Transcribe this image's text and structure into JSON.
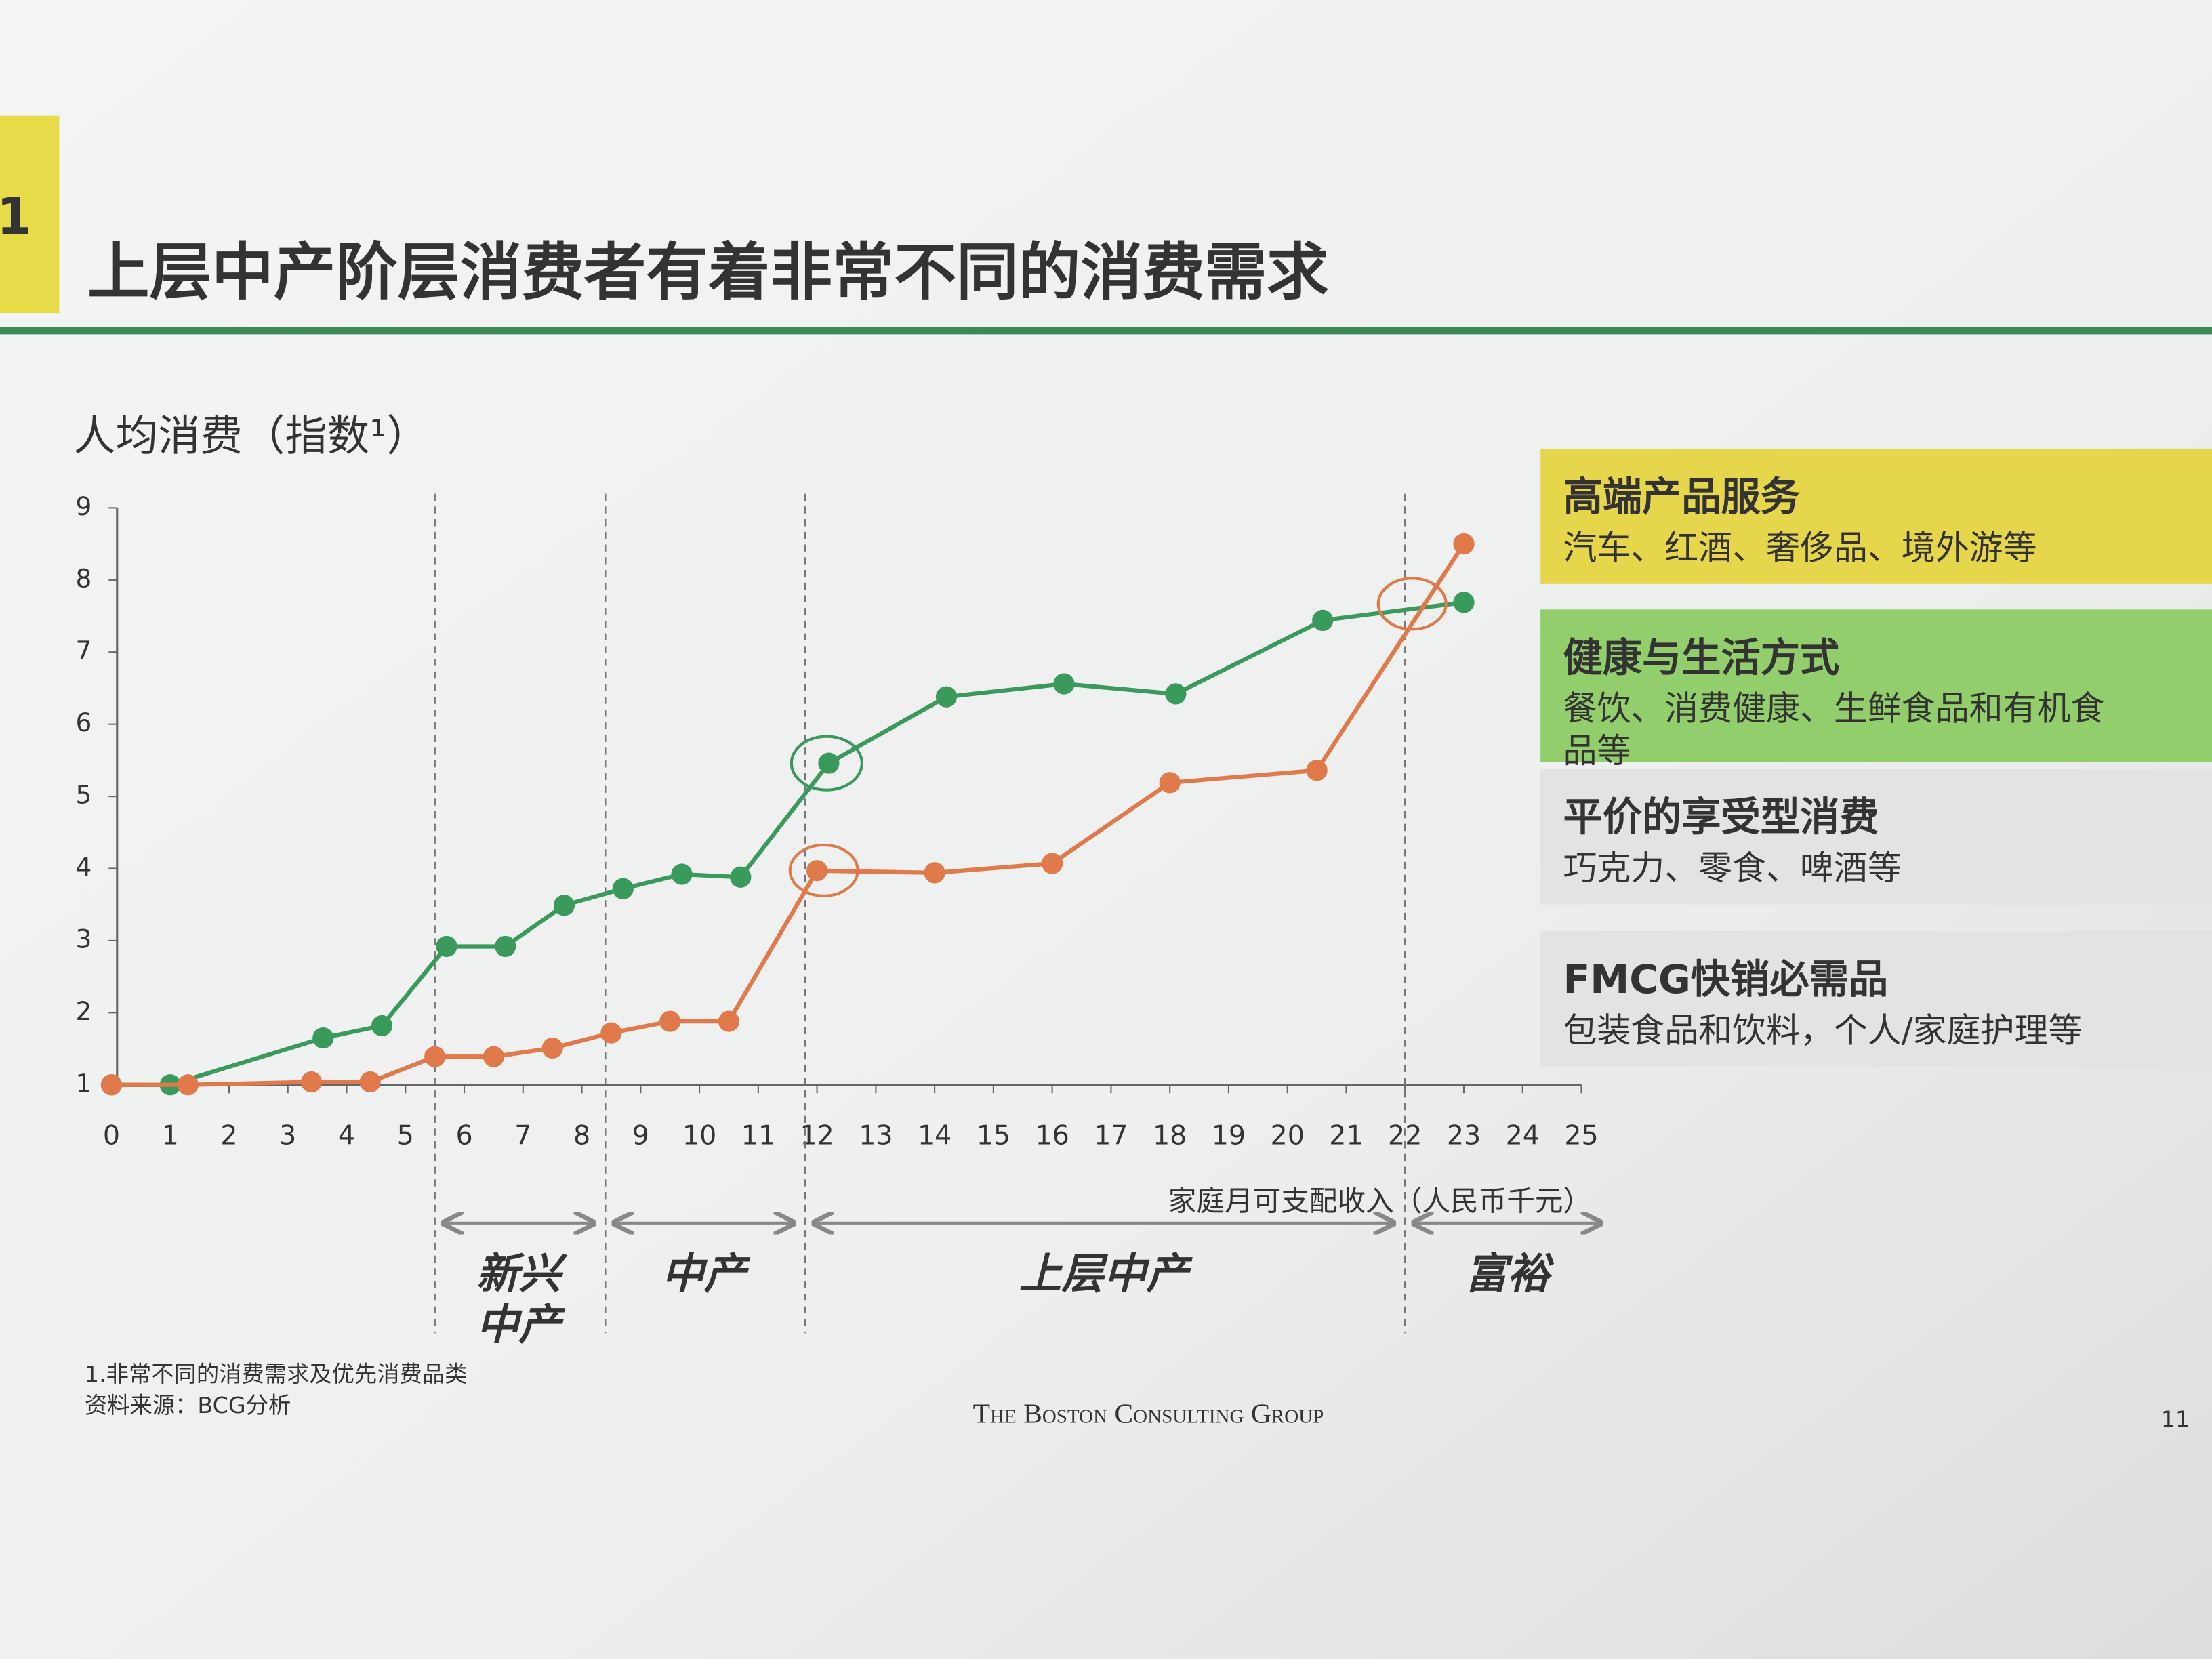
{
  "header": {
    "section": "1",
    "title": "上层中产阶层消费者有着非常不同的消费需求"
  },
  "chart_data": {
    "type": "line",
    "y_label": "人均消费（指数¹）",
    "x_label": "家庭月可支配收入（人民币千元）",
    "xlim": [
      0,
      25
    ],
    "ylim": [
      1,
      9
    ],
    "xticks": [
      0,
      1,
      2,
      3,
      4,
      5,
      6,
      7,
      8,
      9,
      10,
      11,
      12,
      13,
      14,
      15,
      16,
      17,
      18,
      19,
      20,
      21,
      22,
      23,
      24,
      25
    ],
    "yticks": [
      1,
      2,
      3,
      4,
      5,
      6,
      7,
      8,
      9
    ],
    "series": [
      {
        "color": "#3a9a5c",
        "x": [
          0,
          1,
          3.6,
          4.6,
          5.7,
          6.7,
          7.7,
          8.7,
          9.7,
          10.7,
          12.2,
          14.2,
          16.2,
          18.1,
          20.6,
          23.0
        ],
        "values": [
          1,
          1,
          1.65,
          1.82,
          2.92,
          2.92,
          3.49,
          3.72,
          3.92,
          3.88,
          5.46,
          6.38,
          6.56,
          6.42,
          7.44,
          7.69
        ]
      },
      {
        "color": "#e07a4a",
        "x": [
          0,
          1.3,
          3.4,
          4.4,
          5.5,
          6.5,
          7.5,
          8.5,
          9.5,
          10.5,
          12.0,
          14.0,
          16.0,
          18.0,
          20.5,
          23.0
        ],
        "values": [
          1,
          1,
          1.04,
          1.04,
          1.39,
          1.39,
          1.51,
          1.72,
          1.88,
          1.88,
          3.97,
          3.94,
          4.07,
          5.19,
          5.36,
          8.5
        ]
      }
    ],
    "dividers": [
      5.5,
      8.4,
      11.8,
      22
    ],
    "segments": [
      {
        "label": [
          "新兴",
          "中产"
        ],
        "color": "#b5342c"
      },
      {
        "label": [
          "中产"
        ],
        "color": "#1f5fb0"
      },
      {
        "label": [
          "上层中产"
        ],
        "color": "#2f8a4a"
      },
      {
        "label": [
          "富裕"
        ],
        "color": "#d9663a"
      }
    ]
  },
  "legend_boxes": [
    {
      "title": "高端产品服务",
      "desc": [
        "汽车、红酒、奢侈品、境外游等"
      ],
      "color": "#e6d64c"
    },
    {
      "title": "健康与生活方式",
      "desc": [
        "餐饮、消费健康、生鲜食品和有机食",
        "品等"
      ],
      "color": "#92cf6c"
    },
    {
      "title": "平价的享受型消费",
      "desc": [
        "巧克力、零食、啤酒等"
      ],
      "color": "#e2e3e2"
    },
    {
      "title": "FMCG快销必需品",
      "desc": [
        "包装食品和饮料，个人/家庭护理等"
      ],
      "color": "#e2e3e2"
    }
  ],
  "footnotes": [
    "1.非常不同的消费需求及优先消费品类",
    "资料来源：BCG分析"
  ],
  "brand": "The Boston Consulting Group",
  "page": "11"
}
